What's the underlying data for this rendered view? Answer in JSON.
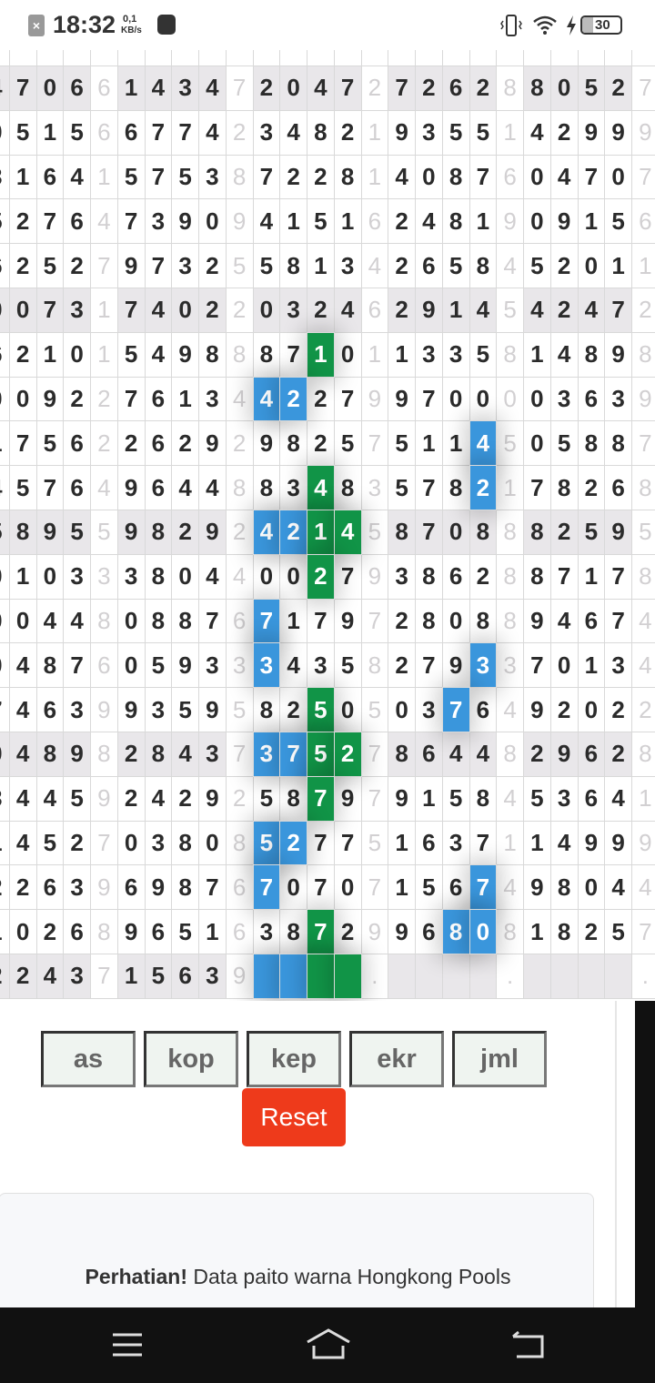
{
  "status_bar": {
    "time": "18:32",
    "net_speed_value": "0,1",
    "net_speed_unit": "KB/s",
    "battery": "30",
    "icons": [
      "close-notification-icon",
      "microphone-icon",
      "vibrate-icon",
      "wifi-icon",
      "charging-icon",
      "battery-icon"
    ]
  },
  "grid": {
    "rows": [
      [
        "4",
        "7",
        "0",
        "6",
        "6",
        "1",
        "4",
        "3",
        "4",
        "7",
        "2",
        "0",
        "4",
        "7",
        "2",
        "7",
        "2",
        "6",
        "2",
        "8",
        "8",
        "0",
        "5",
        "2",
        "7"
      ],
      [
        "0",
        "5",
        "1",
        "5",
        "6",
        "6",
        "7",
        "7",
        "4",
        "2",
        "3",
        "4",
        "8",
        "2",
        "1",
        "9",
        "3",
        "5",
        "5",
        "1",
        "4",
        "2",
        "9",
        "9",
        "9"
      ],
      [
        "3",
        "1",
        "6",
        "4",
        "1",
        "5",
        "7",
        "5",
        "3",
        "8",
        "7",
        "2",
        "2",
        "8",
        "1",
        "4",
        "0",
        "8",
        "7",
        "6",
        "0",
        "4",
        "7",
        "0",
        "7"
      ],
      [
        "5",
        "2",
        "7",
        "6",
        "4",
        "7",
        "3",
        "9",
        "0",
        "9",
        "4",
        "1",
        "5",
        "1",
        "6",
        "2",
        "4",
        "8",
        "1",
        "9",
        "0",
        "9",
        "1",
        "5",
        "6"
      ],
      [
        "6",
        "2",
        "5",
        "2",
        "7",
        "9",
        "7",
        "3",
        "2",
        "5",
        "5",
        "8",
        "1",
        "3",
        "4",
        "2",
        "6",
        "5",
        "8",
        "4",
        "5",
        "2",
        "0",
        "1",
        "1"
      ],
      [
        "0",
        "0",
        "7",
        "3",
        "1",
        "7",
        "4",
        "0",
        "2",
        "2",
        "0",
        "3",
        "2",
        "4",
        "6",
        "2",
        "9",
        "1",
        "4",
        "5",
        "4",
        "2",
        "4",
        "7",
        "2"
      ],
      [
        "6",
        "2",
        "1",
        "0",
        "1",
        "5",
        "4",
        "9",
        "8",
        "8",
        "8",
        "7",
        "1",
        "0",
        "1",
        "1",
        "3",
        "3",
        "5",
        "8",
        "1",
        "4",
        "8",
        "9",
        "8"
      ],
      [
        "0",
        "0",
        "9",
        "2",
        "2",
        "7",
        "6",
        "1",
        "3",
        "4",
        "4",
        "2",
        "2",
        "7",
        "9",
        "9",
        "7",
        "0",
        "0",
        "0",
        "0",
        "3",
        "6",
        "3",
        "9"
      ],
      [
        "1",
        "7",
        "5",
        "6",
        "2",
        "2",
        "6",
        "2",
        "9",
        "2",
        "9",
        "8",
        "2",
        "5",
        "7",
        "5",
        "1",
        "1",
        "4",
        "5",
        "0",
        "5",
        "8",
        "8",
        "7"
      ],
      [
        "4",
        "5",
        "7",
        "6",
        "4",
        "9",
        "6",
        "4",
        "4",
        "8",
        "8",
        "3",
        "4",
        "8",
        "3",
        "5",
        "7",
        "8",
        "2",
        "1",
        "7",
        "8",
        "2",
        "6",
        "8"
      ],
      [
        "5",
        "8",
        "9",
        "5",
        "5",
        "9",
        "8",
        "2",
        "9",
        "2",
        "4",
        "2",
        "1",
        "4",
        "5",
        "8",
        "7",
        "0",
        "8",
        "8",
        "8",
        "2",
        "5",
        "9",
        "5"
      ],
      [
        "0",
        "1",
        "0",
        "3",
        "3",
        "3",
        "8",
        "0",
        "4",
        "4",
        "0",
        "0",
        "2",
        "7",
        "9",
        "3",
        "8",
        "6",
        "2",
        "8",
        "8",
        "7",
        "1",
        "7",
        "8"
      ],
      [
        "0",
        "0",
        "4",
        "4",
        "8",
        "0",
        "8",
        "8",
        "7",
        "6",
        "7",
        "1",
        "7",
        "9",
        "7",
        "2",
        "8",
        "0",
        "8",
        "8",
        "9",
        "4",
        "6",
        "7",
        "4"
      ],
      [
        "0",
        "4",
        "8",
        "7",
        "6",
        "0",
        "5",
        "9",
        "3",
        "3",
        "3",
        "4",
        "3",
        "5",
        "8",
        "2",
        "7",
        "9",
        "3",
        "3",
        "7",
        "0",
        "1",
        "3",
        "4"
      ],
      [
        "7",
        "4",
        "6",
        "3",
        "9",
        "9",
        "3",
        "5",
        "9",
        "5",
        "8",
        "2",
        "5",
        "0",
        "5",
        "0",
        "3",
        "7",
        "6",
        "4",
        "9",
        "2",
        "0",
        "2",
        "2"
      ],
      [
        "0",
        "4",
        "8",
        "9",
        "8",
        "2",
        "8",
        "4",
        "3",
        "7",
        "3",
        "7",
        "5",
        "2",
        "7",
        "8",
        "6",
        "4",
        "4",
        "8",
        "2",
        "9",
        "6",
        "2",
        "8"
      ],
      [
        "3",
        "4",
        "4",
        "5",
        "9",
        "2",
        "4",
        "2",
        "9",
        "2",
        "5",
        "8",
        "7",
        "9",
        "7",
        "9",
        "1",
        "5",
        "8",
        "4",
        "5",
        "3",
        "6",
        "4",
        "1"
      ],
      [
        "1",
        "4",
        "5",
        "2",
        "7",
        "0",
        "3",
        "8",
        "0",
        "8",
        "5",
        "2",
        "7",
        "7",
        "5",
        "1",
        "6",
        "3",
        "7",
        "1",
        "1",
        "4",
        "9",
        "9",
        "9"
      ],
      [
        "2",
        "2",
        "6",
        "3",
        "9",
        "6",
        "9",
        "8",
        "7",
        "6",
        "7",
        "0",
        "7",
        "0",
        "7",
        "1",
        "5",
        "6",
        "7",
        "4",
        "9",
        "8",
        "0",
        "4",
        "4"
      ],
      [
        "1",
        "0",
        "2",
        "6",
        "8",
        "9",
        "6",
        "5",
        "1",
        "6",
        "3",
        "8",
        "7",
        "2",
        "9",
        "9",
        "6",
        "8",
        "0",
        "8",
        "1",
        "8",
        "2",
        "5",
        "7"
      ],
      [
        "2",
        "2",
        "4",
        "3",
        "7",
        "1",
        "5",
        "6",
        "3",
        "9",
        "",
        "",
        "",
        "",
        ".",
        "",
        "",
        "",
        "",
        ".",
        "",
        "",
        "",
        "",
        "."
      ]
    ],
    "highlights": [
      {
        "row": 6,
        "col": 12,
        "color": "green"
      },
      {
        "row": 7,
        "col": 10,
        "color": "blue"
      },
      {
        "row": 7,
        "col": 11,
        "color": "blue"
      },
      {
        "row": 8,
        "col": 18,
        "color": "blue"
      },
      {
        "row": 9,
        "col": 12,
        "color": "green"
      },
      {
        "row": 9,
        "col": 18,
        "color": "blue"
      },
      {
        "row": 10,
        "col": 10,
        "color": "blue"
      },
      {
        "row": 10,
        "col": 11,
        "color": "blue"
      },
      {
        "row": 10,
        "col": 12,
        "color": "green"
      },
      {
        "row": 10,
        "col": 13,
        "color": "green"
      },
      {
        "row": 11,
        "col": 12,
        "color": "green"
      },
      {
        "row": 12,
        "col": 10,
        "color": "blue"
      },
      {
        "row": 13,
        "col": 10,
        "color": "blue"
      },
      {
        "row": 13,
        "col": 18,
        "color": "blue"
      },
      {
        "row": 14,
        "col": 12,
        "color": "green"
      },
      {
        "row": 14,
        "col": 17,
        "color": "blue"
      },
      {
        "row": 15,
        "col": 10,
        "color": "blue"
      },
      {
        "row": 15,
        "col": 11,
        "color": "blue"
      },
      {
        "row": 15,
        "col": 12,
        "color": "green"
      },
      {
        "row": 15,
        "col": 13,
        "color": "green"
      },
      {
        "row": 16,
        "col": 12,
        "color": "green"
      },
      {
        "row": 17,
        "col": 10,
        "color": "blue"
      },
      {
        "row": 17,
        "col": 11,
        "color": "blue"
      },
      {
        "row": 18,
        "col": 10,
        "color": "blue"
      },
      {
        "row": 18,
        "col": 18,
        "color": "blue"
      },
      {
        "row": 19,
        "col": 12,
        "color": "green"
      },
      {
        "row": 19,
        "col": 17,
        "color": "blue"
      },
      {
        "row": 19,
        "col": 18,
        "color": "blue"
      },
      {
        "row": 20,
        "col": 10,
        "color": "blue"
      },
      {
        "row": 20,
        "col": 11,
        "color": "blue"
      },
      {
        "row": 20,
        "col": 12,
        "color": "green"
      },
      {
        "row": 20,
        "col": 13,
        "color": "green"
      }
    ],
    "colors": {
      "blue": "#3a96dc",
      "green": "#119447",
      "shaded_row": "#e9e7ea"
    }
  },
  "buttons": {
    "as": "as",
    "kop": "kop",
    "kep": "kep",
    "ekr": "ekr",
    "jml": "jml",
    "reset": "Reset"
  },
  "notice": {
    "bold": "Perhatian!",
    "text": " Data paito warna Hongkong Pools"
  },
  "nav": {
    "icons": [
      "menu-icon",
      "home-icon",
      "back-icon"
    ]
  }
}
